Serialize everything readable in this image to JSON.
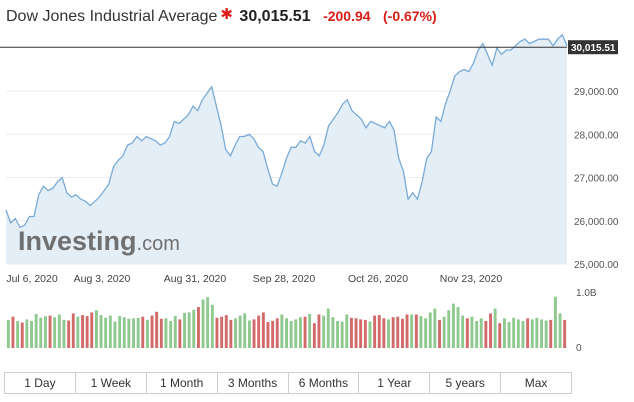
{
  "header": {
    "title": "Dow Jones Industrial Average",
    "price": "30,015.51",
    "change": "-200.94",
    "change_pct": "(-0.67%)"
  },
  "watermark": "Investing.com",
  "colors": {
    "line": "#7aaad6",
    "area": "#e4eef7",
    "up_volume": "#8fc98f",
    "down_volume": "#d36a6a",
    "negative": "#d91e18",
    "price_tag": "#333333"
  },
  "ranges": [
    "1 Day",
    "1 Week",
    "1 Month",
    "3 Months",
    "6 Months",
    "1 Year",
    "5 years",
    "Max"
  ],
  "chart_data": {
    "type": "area",
    "x_ticks": [
      "Jul 6, 2020",
      "Aug 3, 2020",
      "Aug 31, 2020",
      "Sep 28, 2020",
      "Oct 26, 2020",
      "Nov 23, 2020"
    ],
    "y_ticks": [
      "25,000.00",
      "26,000.00",
      "27,000.00",
      "28,000.00",
      "29,000.00"
    ],
    "ylim": [
      25000,
      30460
    ],
    "last_price_label": "30,015.51",
    "last_price": 30015.51,
    "volume_ticks": [
      "0",
      "1.0B"
    ],
    "volume_max": 1.0,
    "series": [
      {
        "values": [
          26250,
          25950,
          26050,
          25850,
          25900,
          26100,
          26100,
          26600,
          26800,
          26700,
          26750,
          26900,
          27000,
          26650,
          26550,
          26600,
          26500,
          26450,
          26350,
          26450,
          26550,
          26700,
          26850,
          27250,
          27400,
          27500,
          27750,
          27800,
          27950,
          27850,
          27950,
          27900,
          27850,
          27750,
          27800,
          27950,
          28300,
          28250,
          28350,
          28450,
          28650,
          28550,
          28800,
          28950,
          29100,
          28650,
          28200,
          27650,
          27500,
          27750,
          27950,
          27950,
          28000,
          27900,
          27700,
          27600,
          27200,
          26850,
          26800,
          27100,
          27450,
          27700,
          27700,
          27850,
          27800,
          27950,
          27600,
          27500,
          27750,
          28200,
          28350,
          28500,
          28700,
          28800,
          28550,
          28450,
          28350,
          28150,
          28300,
          28250,
          28200,
          28150,
          28300,
          28100,
          27450,
          27150,
          26500,
          26650,
          26500,
          26900,
          27450,
          27600,
          28400,
          28300,
          28700,
          29000,
          29350,
          29450,
          29500,
          29450,
          29650,
          29950,
          30100,
          29850,
          29600,
          30000,
          29850,
          29950,
          29950,
          30050,
          30150,
          30200,
          30100,
          30150,
          30200,
          30200,
          30200,
          30050,
          30200,
          30300,
          30050
        ],
        "volumes": [
          0.52,
          0.58,
          0.5,
          0.47,
          0.53,
          0.5,
          0.63,
          0.56,
          0.59,
          0.6,
          0.57,
          0.62,
          0.52,
          0.51,
          0.64,
          0.58,
          0.61,
          0.59,
          0.66,
          0.7,
          0.61,
          0.56,
          0.6,
          0.49,
          0.59,
          0.57,
          0.54,
          0.55,
          0.56,
          0.58,
          0.52,
          0.6,
          0.67,
          0.54,
          0.55,
          0.5,
          0.59,
          0.53,
          0.65,
          0.66,
          0.71,
          0.76,
          0.9,
          0.94,
          0.8,
          0.56,
          0.58,
          0.61,
          0.52,
          0.55,
          0.6,
          0.64,
          0.51,
          0.53,
          0.6,
          0.66,
          0.48,
          0.5,
          0.55,
          0.62,
          0.55,
          0.5,
          0.53,
          0.57,
          0.58,
          0.63,
          0.46,
          0.62,
          0.6,
          0.73,
          0.57,
          0.5,
          0.49,
          0.62,
          0.56,
          0.55,
          0.53,
          0.52,
          0.49,
          0.6,
          0.61,
          0.55,
          0.53,
          0.57,
          0.58,
          0.54,
          0.62,
          0.62,
          0.62,
          0.59,
          0.55,
          0.66,
          0.73,
          0.52,
          0.58,
          0.7,
          0.82,
          0.76,
          0.6,
          0.55,
          0.58,
          0.5,
          0.55,
          0.5,
          0.64,
          0.73,
          0.46,
          0.55,
          0.48,
          0.56,
          0.53,
          0.5,
          0.55,
          0.53,
          0.56,
          0.53,
          0.51,
          0.52,
          0.95,
          0.64,
          0.52
        ]
      }
    ]
  }
}
